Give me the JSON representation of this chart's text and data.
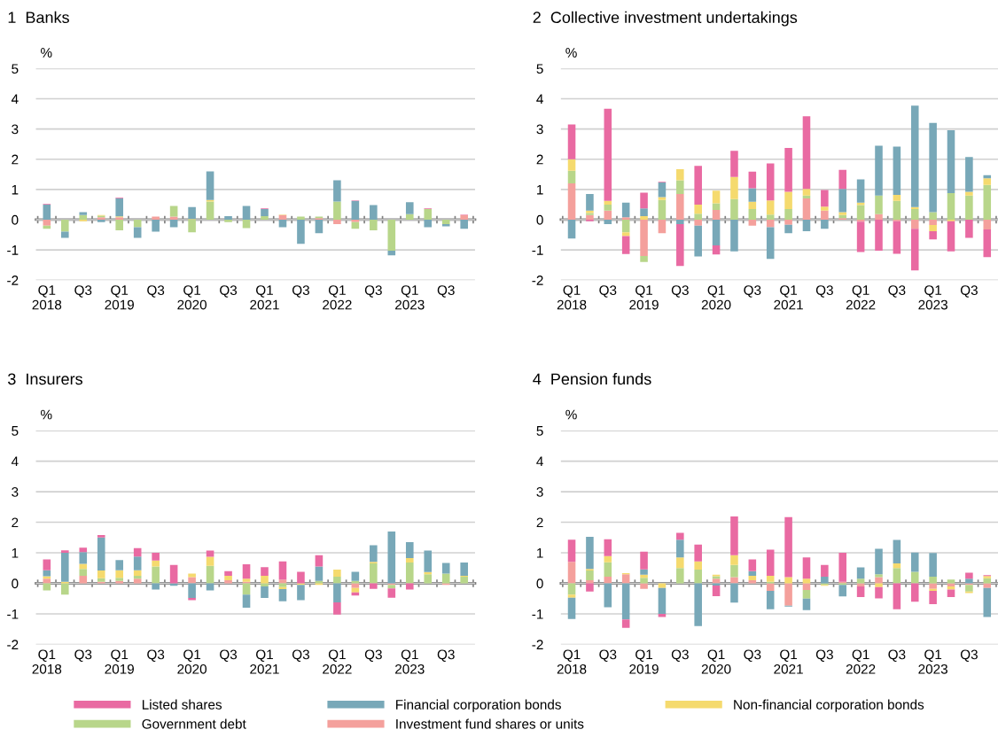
{
  "chart_data": [
    {
      "type": "bar",
      "title": "1  Banks",
      "ylabel": "%",
      "stacked": true,
      "ylim": [
        -2,
        5
      ],
      "yticks": [
        -2,
        -1,
        0,
        1,
        2,
        3,
        4,
        5
      ],
      "grid": "y",
      "legend": "bottom",
      "categories": [
        "Q1\n2018",
        null,
        "Q3",
        null,
        "Q1\n2019",
        null,
        "Q3",
        null,
        "Q1\n2020",
        null,
        "Q3",
        null,
        "Q1\n2021",
        null,
        "Q3",
        null,
        "Q1\n2022",
        null,
        "Q3",
        null,
        "Q1\n2023",
        null,
        "Q3",
        null
      ],
      "series": [
        {
          "name": "Investment fund shares or units",
          "color": "#f4a09c",
          "values": [
            -0.2,
            0,
            0,
            0.08,
            0.08,
            0,
            0.1,
            0.1,
            0,
            0,
            0,
            0,
            0,
            0.15,
            0,
            0.05,
            -0.15,
            -0.08,
            0,
            0,
            0,
            0,
            0,
            0.15
          ]
        },
        {
          "name": "Government debt",
          "color": "#b8d68a",
          "values": [
            -0.1,
            -0.4,
            0.15,
            0.05,
            -0.35,
            -0.25,
            0,
            0.35,
            -0.42,
            0.6,
            -0.08,
            -0.28,
            0.12,
            0,
            0.1,
            0.05,
            0.6,
            -0.22,
            -0.35,
            -1.03,
            0.18,
            0.35,
            -0.15,
            0
          ]
        },
        {
          "name": "Non-financial corporation bonds",
          "color": "#f5da6e",
          "values": [
            0,
            0,
            -0.05,
            0.02,
            0.03,
            0,
            0,
            0,
            0.02,
            0.05,
            0,
            0,
            0,
            0.02,
            0,
            0,
            0,
            0,
            0,
            0,
            0,
            0,
            0,
            0
          ]
        },
        {
          "name": "Financial corporation bonds",
          "color": "#78a8b8",
          "values": [
            0.5,
            -0.2,
            0.1,
            -0.08,
            0.6,
            -0.35,
            -0.4,
            -0.25,
            0.4,
            0.95,
            0.12,
            0.45,
            0.23,
            -0.25,
            -0.8,
            -0.45,
            0.7,
            0.62,
            0.48,
            -0.15,
            0.4,
            -0.25,
            -0.07,
            -0.3
          ]
        },
        {
          "name": "Listed shares",
          "color": "#e96aa2",
          "values": [
            0.02,
            0,
            null,
            0,
            0.02,
            0,
            0,
            0,
            0,
            null,
            0,
            0,
            0.02,
            0,
            0,
            0,
            0,
            0.02,
            0,
            0,
            null,
            0.02,
            0,
            0.02
          ]
        }
      ]
    },
    {
      "type": "bar",
      "title": "2  Collective investment undertakings",
      "ylabel": "%",
      "stacked": true,
      "ylim": [
        -2,
        5
      ],
      "yticks": [
        -2,
        -1,
        0,
        1,
        2,
        3,
        4,
        5
      ],
      "grid": "y",
      "categories": [
        "Q1\n2018",
        null,
        "Q3",
        null,
        "Q1\n2019",
        null,
        "Q3",
        null,
        "Q1\n2020",
        null,
        "Q3",
        null,
        "Q1\n2021",
        null,
        "Q3",
        null,
        "Q1\n2022",
        null,
        "Q3",
        null,
        "Q1\n2023",
        null,
        "Q3",
        null
      ],
      "series": [
        {
          "color": "#f4a09c",
          "values": [
            1.2,
            0.15,
            0.3,
            0.08,
            -1.2,
            -0.45,
            0.85,
            -0.2,
            0.32,
            0,
            -0.2,
            -0.25,
            -0.17,
            0.7,
            0.3,
            0.05,
            -0.07,
            0.18,
            -0.05,
            -0.3,
            -0.18,
            0,
            0,
            -0.32
          ]
        },
        {
          "color": "#b8d68a",
          "values": [
            0.42,
            0.07,
            0.2,
            -0.42,
            -0.2,
            0.65,
            0.45,
            0.2,
            0.22,
            0.68,
            0.35,
            0.17,
            0.35,
            0.1,
            0,
            0.1,
            0.48,
            0.62,
            0.62,
            0.35,
            0.25,
            0.88,
            0.8,
            1.15
          ]
        },
        {
          "color": "#f5da6e",
          "values": [
            0.38,
            0.08,
            0.12,
            -0.12,
            0.12,
            0.1,
            0.37,
            0.3,
            0.42,
            0.73,
            0.24,
            0.47,
            0.57,
            0.22,
            0.13,
            0.1,
            0.08,
            0,
            0.2,
            0.07,
            -0.2,
            -0.05,
            0.12,
            0.22
          ]
        },
        {
          "color": "#78a8b8",
          "values": [
            -0.62,
            0.55,
            -0.15,
            0.48,
            0.25,
            0.48,
            -0.15,
            -1.02,
            -0.85,
            -1.05,
            0.45,
            -1.05,
            -0.28,
            -0.38,
            -0.3,
            0.77,
            0.77,
            1.65,
            1.6,
            3.35,
            2.95,
            2.08,
            1.15,
            0.1
          ]
        },
        {
          "color": "#e96aa2",
          "values": [
            1.15,
            -0.05,
            3.05,
            -0.6,
            0.52,
            0.02,
            -1.38,
            1.28,
            -0.3,
            0.87,
            0.55,
            1.22,
            1.45,
            2.4,
            0.55,
            0.63,
            -1.0,
            -1.03,
            -1.08,
            -1.38,
            -0.27,
            -1.0,
            -0.6,
            -0.92
          ]
        }
      ]
    },
    {
      "type": "bar",
      "title": "3  Insurers",
      "ylabel": "%",
      "stacked": true,
      "ylim": [
        -2,
        5
      ],
      "yticks": [
        -2,
        -1,
        0,
        1,
        2,
        3,
        4,
        5
      ],
      "grid": "y",
      "categories": [
        "Q1\n2018",
        null,
        "Q3",
        null,
        "Q1\n2019",
        null,
        "Q3",
        null,
        "Q1\n2020",
        null,
        "Q3",
        null,
        "Q1\n2021",
        null,
        "Q3",
        null,
        "Q1\n2022",
        null,
        "Q3",
        null,
        "Q1\n2023",
        null,
        "Q3",
        null
      ],
      "series": [
        {
          "color": "#f4a09c",
          "values": [
            0.15,
            0,
            0.25,
            0.05,
            0.08,
            0.15,
            0,
            0,
            0.2,
            0,
            0.1,
            0.05,
            0,
            0.12,
            0,
            0,
            0,
            -0.15,
            0,
            -0.05,
            0,
            0,
            -0.05,
            0
          ]
        },
        {
          "color": "#b8d68a",
          "values": [
            -0.23,
            -0.37,
            0.22,
            0.12,
            0.1,
            0.1,
            0.55,
            0,
            0,
            0.57,
            0,
            -0.37,
            -0.1,
            -0.12,
            0,
            0.08,
            0.22,
            0.08,
            0.65,
            -0.12,
            0.68,
            0.3,
            0.32,
            0.22
          ]
        },
        {
          "color": "#f5da6e",
          "values": [
            0.08,
            0.05,
            0.17,
            0.25,
            0.25,
            0.18,
            0.2,
            0,
            0.12,
            0.3,
            0.15,
            0.1,
            0.25,
            -0.07,
            -0.05,
            -0.05,
            0.23,
            -0.15,
            0.05,
            0,
            0.15,
            0.07,
            0,
            0.03
          ]
        },
        {
          "color": "#78a8b8",
          "values": [
            0.2,
            0.95,
            0.38,
            1.08,
            0.33,
            0.45,
            -0.2,
            -0.08,
            -0.48,
            -0.23,
            0,
            -0.43,
            -0.38,
            -0.4,
            -0.5,
            0.47,
            -0.62,
            0.3,
            0.55,
            1.7,
            0.52,
            0.7,
            0.35,
            0.43
          ]
        },
        {
          "color": "#e96aa2",
          "values": [
            0.35,
            0.08,
            0.15,
            0.08,
            0,
            0.27,
            0.25,
            0.6,
            -0.07,
            0.2,
            0.15,
            0.47,
            0.28,
            0.6,
            0.38,
            0.37,
            -0.4,
            -0.1,
            -0.18,
            -0.3,
            -0.2,
            0,
            0,
            0
          ]
        }
      ]
    },
    {
      "type": "bar",
      "title": "4  Pension funds",
      "ylabel": "%",
      "stacked": true,
      "ylim": [
        -2,
        5
      ],
      "yticks": [
        -2,
        -1,
        0,
        1,
        2,
        3,
        4,
        5
      ],
      "grid": "y",
      "categories": [
        "Q1\n2018",
        null,
        "Q3",
        null,
        "Q1\n2019",
        null,
        "Q3",
        null,
        "Q1\n2020",
        null,
        "Q3",
        null,
        "Q1\n2021",
        null,
        "Q3",
        null,
        "Q1\n2022",
        null,
        "Q3",
        null,
        "Q1\n2023",
        null,
        "Q3",
        null
      ],
      "series": [
        {
          "color": "#f4a09c",
          "values": [
            0.7,
            0.1,
            0.22,
            0.3,
            -0.18,
            0,
            0,
            0,
            0.15,
            0.2,
            0.1,
            -0.25,
            -0.73,
            -0.22,
            0,
            0.05,
            -0.1,
            0.2,
            0,
            0,
            -0.18,
            -0.1,
            -0.05,
            -0.15
          ]
        },
        {
          "color": "#b8d68a",
          "values": [
            -0.37,
            0.32,
            0.47,
            0,
            0.18,
            0,
            0.5,
            0.45,
            0.08,
            0.4,
            0,
            0.05,
            0,
            -0.28,
            -0.05,
            -0.05,
            0.15,
            0.1,
            0.5,
            0.38,
            0.22,
            0.12,
            -0.22,
            0.17
          ]
        },
        {
          "color": "#f5da6e",
          "values": [
            -0.1,
            0.05,
            0.2,
            0.03,
            0.1,
            -0.15,
            0.35,
            0.27,
            0.05,
            0.32,
            0.15,
            0.2,
            0.2,
            0.15,
            -0.03,
            0,
            0,
            -0.12,
            0.15,
            0,
            -0.07,
            -0.1,
            -0.05,
            0.07
          ]
        },
        {
          "color": "#78a8b8",
          "values": [
            -0.7,
            1.05,
            -0.78,
            -1.18,
            0.18,
            -0.85,
            0.58,
            -1.4,
            -0.07,
            -0.63,
            0.15,
            -0.6,
            -0.03,
            -0.38,
            0.22,
            -0.38,
            0.37,
            0.83,
            0.77,
            0.63,
            0.77,
            0,
            0.15,
            -0.95
          ]
        },
        {
          "color": "#e96aa2",
          "values": [
            0.73,
            -0.27,
            0.55,
            -0.28,
            0.58,
            -0.1,
            0.22,
            0.55,
            -0.35,
            1.27,
            0.38,
            0.85,
            1.97,
            0.7,
            0.38,
            0.95,
            -0.35,
            -0.37,
            -0.85,
            -0.6,
            -0.43,
            -0.25,
            0.2,
            0.03
          ]
        }
      ]
    }
  ]
}
